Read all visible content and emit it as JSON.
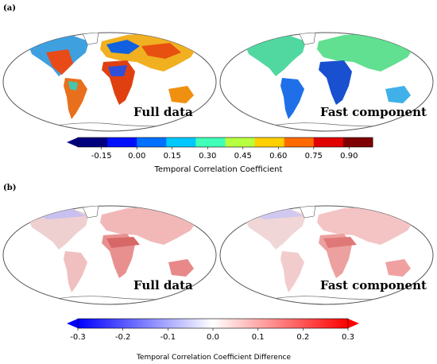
{
  "panels": [
    {
      "letter": "(a)",
      "maps": [
        {
          "label": "Full data",
          "scheme": "full"
        },
        {
          "label": "Fast component",
          "scheme": "fast"
        }
      ]
    },
    {
      "letter": "(b)",
      "maps": [
        {
          "label": "Full data",
          "scheme": "diff_full"
        },
        {
          "label": "Fast component",
          "scheme": "diff_fast"
        }
      ]
    }
  ],
  "chart_data": [
    {
      "type": "heatmap",
      "panel": "(a)",
      "colorbar": {
        "title": "Temporal Correlation Coefficient",
        "range": [
          -0.25,
          1.0
        ],
        "ticks": [
          "-0.15",
          "0.00",
          "0.15",
          "0.30",
          "0.45",
          "0.60",
          "0.75",
          "0.90"
        ],
        "tick_values": [
          -0.15,
          0.0,
          0.15,
          0.3,
          0.45,
          0.6,
          0.75,
          0.9
        ],
        "colors": [
          "#00007f",
          "#0010ff",
          "#0070ff",
          "#00c8ff",
          "#40ffb8",
          "#b8ff40",
          "#ffd000",
          "#ff6a00",
          "#e00000",
          "#7f0000"
        ],
        "extend": "min"
      },
      "maps": [
        "Full data",
        "Fast component"
      ]
    },
    {
      "type": "heatmap",
      "panel": "(b)",
      "colorbar": {
        "title": "Temporal Correlation Coefficient Difference",
        "range": [
          -0.3,
          0.3
        ],
        "ticks": [
          "-0.3",
          "-0.2",
          "-0.1",
          "0.0",
          "0.1",
          "0.2",
          "0.3"
        ],
        "tick_values": [
          -0.3,
          -0.2,
          -0.1,
          0.0,
          0.1,
          0.2,
          0.3
        ],
        "colors": [
          "#0000ff",
          "#ffffff",
          "#ff0000"
        ],
        "extend": "both"
      },
      "maps": [
        "Full data",
        "Fast component"
      ]
    }
  ]
}
